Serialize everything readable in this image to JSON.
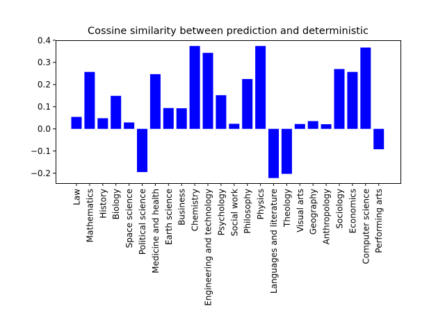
{
  "chart_data": {
    "type": "bar",
    "title": "Cossine similarity between prediction and deterministic",
    "xlabel": "",
    "ylabel": "",
    "categories": [
      "Law",
      "Mathematics",
      "History",
      "Biology",
      "Space science",
      "Political science",
      "Medicine and health",
      "Earth science",
      "Business",
      "Chemistry",
      "Engineering and technology",
      "Psychology",
      "Social work",
      "Philosophy",
      "Physics",
      "Languages and literature",
      "Theology",
      "Visual arts",
      "Geography",
      "Anthropology",
      "Sociology",
      "Economics",
      "Computer science",
      "Performing arts"
    ],
    "values": [
      0.054,
      0.257,
      0.048,
      0.149,
      0.029,
      -0.195,
      0.247,
      0.094,
      0.093,
      0.374,
      0.343,
      0.152,
      0.023,
      0.225,
      0.374,
      -0.222,
      -0.203,
      0.022,
      0.035,
      0.021,
      0.27,
      0.257,
      0.367,
      -0.092
    ],
    "ylim": [
      -0.245,
      0.4
    ],
    "yticks": [
      -0.2,
      -0.1,
      0.0,
      0.1,
      0.2,
      0.3,
      0.4
    ],
    "ytick_labels": [
      "−0.2",
      "−0.1",
      "0.0",
      "0.1",
      "0.2",
      "0.3",
      "0.4"
    ],
    "bar_color": "#0000ff",
    "grid": false,
    "legend": "none"
  }
}
